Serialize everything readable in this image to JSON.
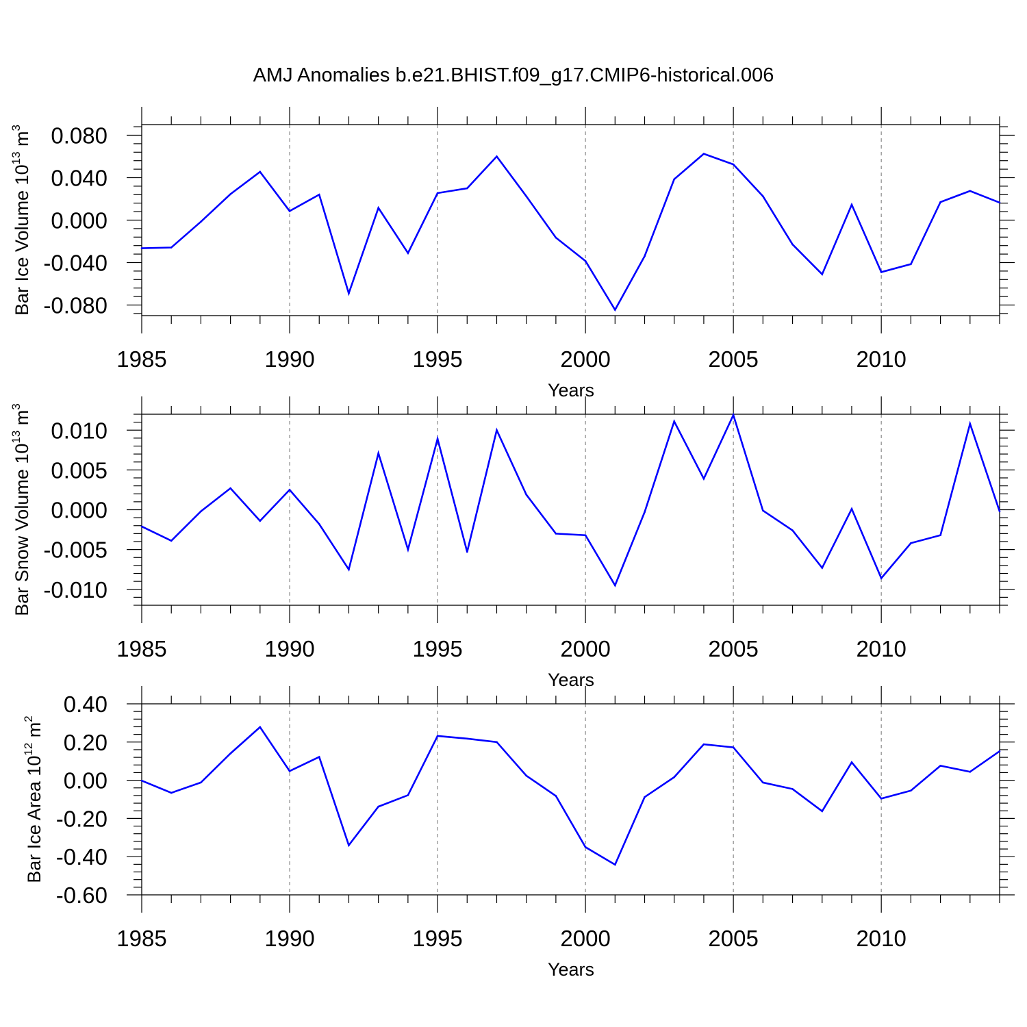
{
  "figure": {
    "title": "AMJ Anomalies b.e21.BHIST.f09_g17.CMIP6-historical.006",
    "line_color": "#0000ff"
  },
  "chart_data": [
    {
      "type": "line",
      "name": "ice-volume",
      "xlabel": "Years",
      "ylabel": {
        "prefix": "Bar Ice Volume 10",
        "exponent": "13",
        "unit": " m",
        "unit_exponent": "3"
      },
      "xlim": [
        1985,
        2014
      ],
      "ylim": [
        -0.09,
        0.09
      ],
      "xticks": [
        1985,
        1990,
        1995,
        2000,
        2005,
        2010
      ],
      "xtick_labels": [
        "1985",
        "1990",
        "1995",
        "2000",
        "2005",
        "2010"
      ],
      "yticks": [
        0.08,
        0.04,
        0.0,
        -0.04,
        -0.08
      ],
      "ytick_labels": [
        "0.080",
        "0.040",
        "0.000",
        "-0.040",
        "-0.080"
      ],
      "grid_x": [
        1990,
        1995,
        2000,
        2005,
        2010
      ],
      "x": [
        1985,
        1986,
        1987,
        1988,
        1989,
        1990,
        1991,
        1992,
        1993,
        1994,
        1995,
        1996,
        1997,
        1998,
        1999,
        2000,
        2001,
        2002,
        2003,
        2004,
        2005,
        2006,
        2007,
        2008,
        2009,
        2010,
        2011,
        2012,
        2013,
        2014
      ],
      "y": [
        -0.0265,
        -0.0258,
        -0.0015,
        0.0245,
        0.0455,
        0.0085,
        0.024,
        -0.069,
        0.0115,
        -0.031,
        0.0255,
        0.03,
        0.06,
        0.0225,
        -0.0165,
        -0.0385,
        -0.0845,
        -0.034,
        0.0385,
        0.0625,
        0.0525,
        0.0225,
        -0.023,
        -0.051,
        0.0145,
        -0.049,
        -0.0415,
        0.017,
        0.0275,
        0.0165
      ]
    },
    {
      "type": "line",
      "name": "snow-volume",
      "xlabel": "Years",
      "ylabel": {
        "prefix": "Bar Snow Volume 10",
        "exponent": "13",
        "unit": " m",
        "unit_exponent": "3"
      },
      "xlim": [
        1985,
        2014
      ],
      "ylim": [
        -0.012,
        0.012
      ],
      "xticks": [
        1985,
        1990,
        1995,
        2000,
        2005,
        2010
      ],
      "xtick_labels": [
        "1985",
        "1990",
        "1995",
        "2000",
        "2005",
        "2010"
      ],
      "yticks": [
        0.01,
        0.005,
        0.0,
        -0.005,
        -0.01
      ],
      "ytick_labels": [
        "0.010",
        "0.005",
        "0.000",
        "-0.005",
        "-0.010"
      ],
      "grid_x": [
        1990,
        1995,
        2000,
        2005,
        2010
      ],
      "x": [
        1985,
        1986,
        1987,
        1988,
        1989,
        1990,
        1991,
        1992,
        1993,
        1994,
        1995,
        1996,
        1997,
        1998,
        1999,
        2000,
        2001,
        2002,
        2003,
        2004,
        2005,
        2006,
        2007,
        2008,
        2009,
        2010,
        2011,
        2012,
        2013,
        2014
      ],
      "y": [
        -0.0021,
        -0.0039,
        -0.0002,
        0.0027,
        -0.0014,
        0.0025,
        -0.0018,
        -0.0075,
        0.0071,
        -0.005,
        0.0089,
        -0.0053,
        0.01,
        0.0019,
        -0.003,
        -0.0032,
        -0.0095,
        -0.0003,
        0.0111,
        0.0039,
        0.0119,
        -0.0001,
        -0.0026,
        -0.0073,
        0.0001,
        -0.0086,
        -0.0042,
        -0.0032,
        0.0108,
        -0.0002
      ]
    },
    {
      "type": "line",
      "name": "ice-area",
      "xlabel": "Years",
      "ylabel": {
        "prefix": "Bar Ice Area 10",
        "exponent": "12",
        "unit": " m",
        "unit_exponent": "2"
      },
      "xlim": [
        1985,
        2014
      ],
      "ylim": [
        -0.6,
        0.4
      ],
      "xticks": [
        1985,
        1990,
        1995,
        2000,
        2005,
        2010
      ],
      "xtick_labels": [
        "1985",
        "1990",
        "1995",
        "2000",
        "2005",
        "2010"
      ],
      "yticks": [
        0.4,
        0.2,
        0.0,
        -0.2,
        -0.4,
        -0.6
      ],
      "ytick_labels": [
        "0.40",
        "0.20",
        "0.00",
        "-0.20",
        "-0.40",
        "-0.60"
      ],
      "grid_x": [
        1990,
        1995,
        2000,
        2005,
        2010
      ],
      "x": [
        1985,
        1986,
        1987,
        1988,
        1989,
        1990,
        1991,
        1992,
        1993,
        1994,
        1995,
        1996,
        1997,
        1998,
        1999,
        2000,
        2001,
        2002,
        2003,
        2004,
        2005,
        2006,
        2007,
        2008,
        2009,
        2010,
        2011,
        2012,
        2013,
        2014
      ],
      "y": [
        -0.002,
        -0.066,
        -0.012,
        0.14,
        0.278,
        0.048,
        0.122,
        -0.34,
        -0.138,
        -0.078,
        0.232,
        0.218,
        0.2,
        0.024,
        -0.082,
        -0.35,
        -0.442,
        -0.088,
        0.016,
        0.188,
        0.172,
        -0.012,
        -0.046,
        -0.162,
        0.094,
        -0.096,
        -0.054,
        0.076,
        0.044,
        0.152
      ]
    }
  ]
}
